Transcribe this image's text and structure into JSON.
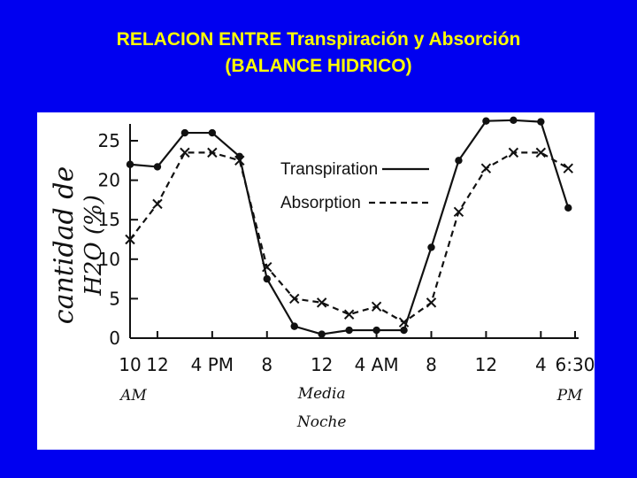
{
  "title_line1": "RELACION ENTRE Transpiración y Absorción",
  "title_line2": "(BALANCE HIDRICO)",
  "colors": {
    "background": "#0000f0",
    "title": "#ffff00",
    "panel": "#ffffff",
    "ink": "#111111"
  },
  "chart_data": {
    "type": "line",
    "ylabel_line1": "cantidad de",
    "ylabel_line2": "H2O (%)",
    "yticks": [
      "0",
      "5",
      "10",
      "15",
      "20",
      "25"
    ],
    "ylim": [
      0,
      27
    ],
    "xlim": [
      10,
      42.5
    ],
    "xticks": [
      {
        "t": 10,
        "label": "10"
      },
      {
        "t": 12,
        "label": "12"
      },
      {
        "t": 16,
        "label": "4 PM"
      },
      {
        "t": 20,
        "label": "8"
      },
      {
        "t": 24,
        "label": "12"
      },
      {
        "t": 28,
        "label": "4 AM"
      },
      {
        "t": 32,
        "label": "8"
      },
      {
        "t": 36,
        "label": "12"
      },
      {
        "t": 40,
        "label": "4"
      },
      {
        "t": 42.5,
        "label": "6:30"
      }
    ],
    "x_sublabels": [
      {
        "t": 10,
        "label": "AM"
      },
      {
        "t": 24,
        "label": "Media"
      },
      {
        "t": 24,
        "label": "Noche"
      },
      {
        "t": 42.5,
        "label": "PM"
      }
    ],
    "grid": false,
    "legend_position": "top-right",
    "series": [
      {
        "name": "Transpiration",
        "style": "solid",
        "marker": "dot",
        "x": [
          10,
          12,
          14,
          16,
          18,
          20,
          22,
          24,
          26,
          28,
          30,
          32,
          34,
          36,
          38,
          40,
          42
        ],
        "y": [
          22,
          21.7,
          26,
          26,
          23,
          7.5,
          1.5,
          0.5,
          1,
          1,
          1,
          11.5,
          22.5,
          27.5,
          27.6,
          27.4,
          16.5
        ]
      },
      {
        "name": "Absorption",
        "style": "dashed",
        "marker": "x",
        "x": [
          10,
          12,
          14,
          16,
          18,
          20,
          22,
          24,
          26,
          28,
          30,
          32,
          34,
          36,
          38,
          40,
          42
        ],
        "y": [
          12.5,
          17,
          23.5,
          23.5,
          22.5,
          9,
          5,
          4.5,
          3,
          4,
          2,
          4.5,
          16,
          21.5,
          23.5,
          23.5,
          21.5
        ]
      }
    ]
  }
}
